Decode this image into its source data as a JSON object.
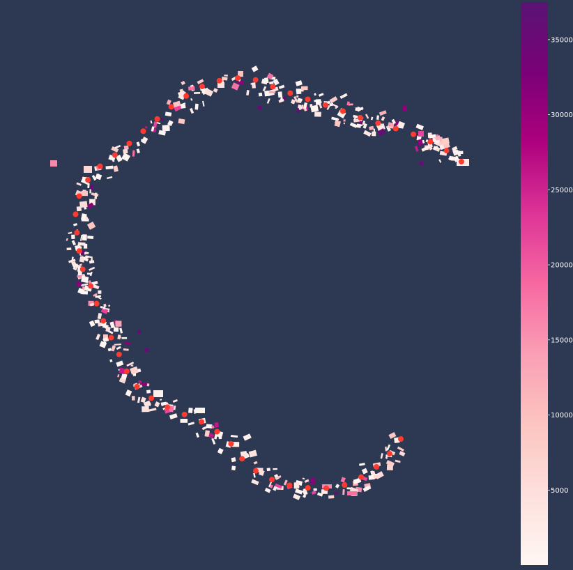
{
  "chart_data": {
    "type": "map",
    "description_source": "choropleth-like map of building footprints colored by value, with red point markers along a C-shaped corridor",
    "colorbar": {
      "min": 0,
      "max": 37500,
      "ticks": [
        5000,
        10000,
        15000,
        20000,
        25000,
        30000,
        35000
      ],
      "tick_labels": [
        "5000",
        "10000",
        "15000",
        "20000",
        "25000",
        "30000",
        "35000"
      ],
      "colormap": "RdPu",
      "stops": [
        "#fff7f3",
        "#fde0dd",
        "#fcc5c0",
        "#fa9fb5",
        "#f768a1",
        "#dd3497",
        "#ae017e",
        "#7a0177",
        "#5a1474"
      ]
    },
    "background_color": "#2d3853",
    "marker_color": "#ff3a2f",
    "marker_count": 53,
    "building_values": [
      1200,
      3500,
      800,
      9000,
      14000,
      2100,
      500,
      18000,
      6000,
      26000,
      1500,
      31000,
      700,
      12000,
      4000,
      22000,
      900,
      36000,
      2800,
      16000
    ]
  }
}
